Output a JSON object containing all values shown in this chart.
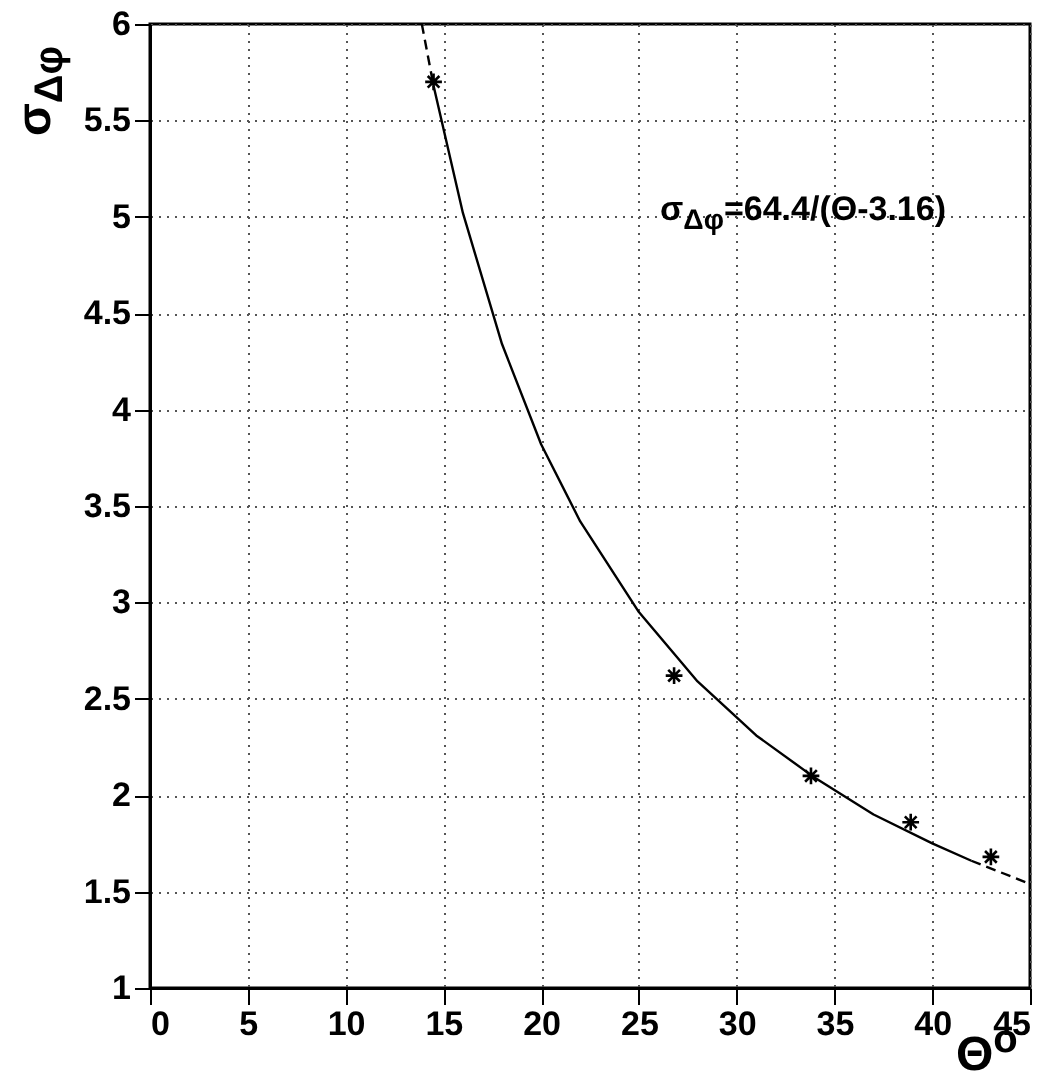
{
  "chart_data": {
    "type": "scatter",
    "xlabel": "Θ$^{o}$",
    "ylabel": "σ$_{Δφ}$",
    "annotations": [
      "σ$_{Δφ}$=64.4/(Θ-3.16)"
    ],
    "series": [
      {
        "color": "#000000",
        "marker": "cross",
        "x": [
          14.5,
          26.8,
          33.8,
          38.9,
          43
        ],
        "values": [
          5.7,
          2.62,
          2.1,
          1.86,
          1.68
        ]
      },
      {
        "type": "line",
        "color": "#000000",
        "line_style": "solid",
        "x": [
          14.5,
          16,
          18,
          20,
          22,
          25,
          28,
          31,
          34,
          37,
          40,
          42
        ],
        "values": [
          5.68,
          5.02,
          4.34,
          3.82,
          3.42,
          2.95,
          2.59,
          2.31,
          2.09,
          1.9,
          1.75,
          1.66
        ]
      },
      {
        "type": "line",
        "color": "#000000",
        "line_style": "dashed",
        "x": [
          13.9,
          14.5
        ],
        "values": [
          6.0,
          5.68
        ]
      },
      {
        "type": "line",
        "color": "#000000",
        "line_style": "dashed",
        "x": [
          42,
          45
        ],
        "values": [
          1.66,
          1.54
        ]
      }
    ],
    "xlim": [
      0,
      45
    ],
    "xticks": [
      0,
      5,
      10,
      15,
      20,
      25,
      30,
      35,
      40,
      45
    ],
    "ylim": [
      1,
      6
    ],
    "yticks": [
      1,
      1.5,
      2,
      2.5,
      3,
      3.5,
      4,
      4.5,
      5,
      5.5,
      6
    ],
    "grid": true
  }
}
